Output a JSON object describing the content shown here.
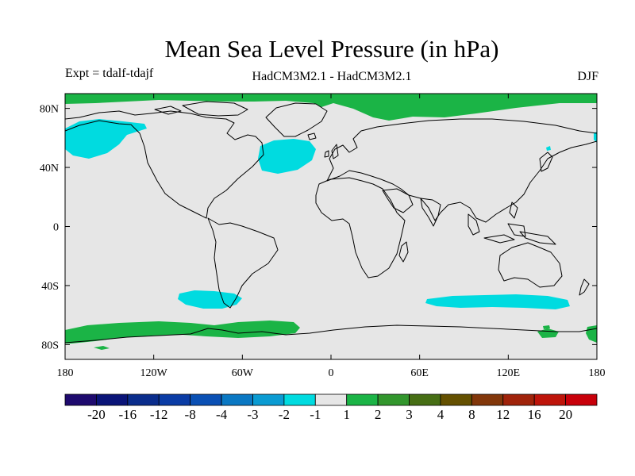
{
  "title": "Mean Sea Level Pressure (in hPa)",
  "subtitle_left": "Expt = tdalf-tdajf",
  "subtitle_center": "HadCM3M2.1 - HadCM3M2.1",
  "subtitle_right": "DJF",
  "colors": {
    "background_class": "#e6e6e6",
    "neg_anomaly": "#00dbe0",
    "pos_anomaly": "#1bb446",
    "coastline": "#000000"
  },
  "axes": {
    "lat_labels": [
      "80N",
      "40N",
      "0",
      "40S",
      "80S"
    ],
    "lat_values": [
      80,
      40,
      0,
      -40,
      -80
    ],
    "lon_labels": [
      "180",
      "120W",
      "60W",
      "0",
      "60E",
      "120E",
      "180"
    ],
    "lon_values": [
      -180,
      -120,
      -60,
      0,
      60,
      120,
      180
    ],
    "lat_range": [
      -90,
      90
    ],
    "lon_range": [
      -180,
      180
    ]
  },
  "colorbar": {
    "labels": [
      "-20",
      "-16",
      "-12",
      "-8",
      "-4",
      "-3",
      "-2",
      "-1",
      "1",
      "2",
      "3",
      "4",
      "8",
      "12",
      "16",
      "20"
    ],
    "colors": [
      "#1e0a6e",
      "#0a1478",
      "#0a2d8c",
      "#0a3ca5",
      "#0a50b4",
      "#0a78c3",
      "#0a9bd2",
      "#00dbe0",
      "#e6e6e6",
      "#1bb446",
      "#32962d",
      "#466e14",
      "#645000",
      "#82370a",
      "#a0230a",
      "#be140a",
      "#c8000a"
    ]
  },
  "chart_data": {
    "type": "map",
    "title": "Mean Sea Level Pressure (in hPa)",
    "variable": "Mean Sea Level Pressure anomaly",
    "units": "hPa",
    "season": "DJF",
    "regions": [
      {
        "name": "arctic-high",
        "sign": "positive",
        "category": "1 to 2",
        "lon_range": [
          -180,
          180
        ],
        "lat_range": [
          82,
          90
        ]
      },
      {
        "name": "north-pacific-low",
        "sign": "negative",
        "category": "-2 to -1",
        "lon_range": [
          -180,
          -130
        ],
        "lat_range": [
          45,
          70
        ]
      },
      {
        "name": "north-atlantic-low",
        "sign": "negative",
        "category": "-2 to -1",
        "lon_range": [
          -50,
          -15
        ],
        "lat_range": [
          32,
          50
        ]
      },
      {
        "name": "south-pacific-low",
        "sign": "negative",
        "category": "-2 to -1",
        "lon_range": [
          -105,
          -65
        ],
        "lat_range": [
          -58,
          -48
        ]
      },
      {
        "name": "south-indian-low",
        "sign": "negative",
        "category": "-2 to -1",
        "lon_range": [
          63,
          160
        ],
        "lat_range": [
          -57,
          -49
        ]
      },
      {
        "name": "antarctic-high-pacific",
        "sign": "positive",
        "category": "1 to 2",
        "lon_range": [
          -180,
          -10
        ],
        "lat_range": [
          -82,
          -72
        ]
      },
      {
        "name": "antarctic-high-ross",
        "sign": "positive",
        "category": "1 to 2",
        "lon_range": [
          155,
          180
        ],
        "lat_range": [
          -80,
          -72
        ]
      }
    ]
  }
}
